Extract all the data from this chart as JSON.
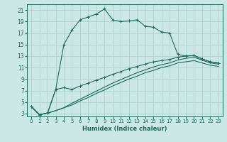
{
  "xlabel": "Humidex (Indice chaleur)",
  "xlim": [
    -0.5,
    23.5
  ],
  "ylim": [
    2.5,
    22
  ],
  "yticks": [
    3,
    5,
    7,
    9,
    11,
    13,
    15,
    17,
    19,
    21
  ],
  "xticks": [
    0,
    1,
    2,
    3,
    4,
    5,
    6,
    7,
    8,
    9,
    10,
    11,
    12,
    13,
    14,
    15,
    16,
    17,
    18,
    19,
    20,
    21,
    22,
    23
  ],
  "bg_color": "#cce8e6",
  "grid_color": "#aacfcc",
  "line_color": "#1a6b60",
  "curve1_x": [
    0,
    1,
    2,
    3,
    4,
    5,
    6,
    7,
    8,
    9,
    10,
    11,
    12,
    13,
    14,
    15,
    16,
    17,
    18,
    19,
    20,
    21,
    22,
    23
  ],
  "curve1_y": [
    4.2,
    2.8,
    3.1,
    7.2,
    15.0,
    17.5,
    19.3,
    19.8,
    20.3,
    21.2,
    19.3,
    19.0,
    19.1,
    19.3,
    18.2,
    18.0,
    17.2,
    17.0,
    13.3,
    13.0,
    13.1,
    12.5,
    12.0,
    11.8
  ],
  "curve2_x": [
    0,
    1,
    2,
    3,
    4,
    5,
    6,
    7,
    8,
    9,
    10,
    11,
    12,
    13,
    14,
    15,
    16,
    17,
    18,
    19,
    20,
    21,
    22,
    23
  ],
  "curve2_y": [
    4.2,
    2.8,
    3.1,
    7.2,
    7.5,
    7.2,
    7.8,
    8.3,
    8.8,
    9.3,
    9.8,
    10.3,
    10.8,
    11.2,
    11.6,
    12.0,
    12.2,
    12.4,
    12.8,
    13.0,
    13.1,
    12.5,
    12.0,
    11.8
  ],
  "curve3_x": [
    0,
    1,
    2,
    3,
    4,
    5,
    6,
    7,
    8,
    9,
    10,
    11,
    12,
    13,
    14,
    15,
    16,
    17,
    18,
    19,
    20,
    21,
    22,
    23
  ],
  "curve3_y": [
    4.2,
    2.8,
    3.1,
    3.5,
    4.0,
    4.8,
    5.5,
    6.2,
    6.9,
    7.6,
    8.3,
    8.9,
    9.5,
    10.1,
    10.6,
    11.1,
    11.5,
    11.8,
    12.3,
    12.6,
    12.8,
    12.3,
    11.8,
    11.6
  ],
  "curve4_x": [
    0,
    1,
    2,
    3,
    4,
    5,
    6,
    7,
    8,
    9,
    10,
    11,
    12,
    13,
    14,
    15,
    16,
    17,
    18,
    19,
    20,
    21,
    22,
    23
  ],
  "curve4_y": [
    4.2,
    2.8,
    3.1,
    3.5,
    4.0,
    4.5,
    5.2,
    5.8,
    6.5,
    7.1,
    7.8,
    8.4,
    9.0,
    9.5,
    10.1,
    10.5,
    11.0,
    11.3,
    11.8,
    12.0,
    12.2,
    11.8,
    11.4,
    11.2
  ]
}
